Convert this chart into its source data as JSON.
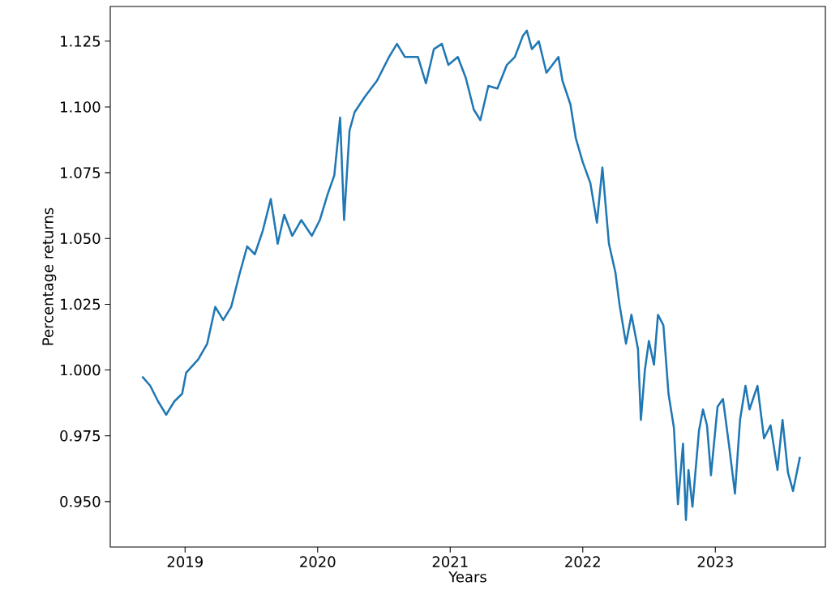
{
  "chart_data": {
    "type": "line",
    "xlabel": "Years",
    "ylabel": "Percentage returns",
    "x": [
      "2018-09-05",
      "2018-09-27",
      "2018-10-19",
      "2018-11-10",
      "2018-12-02",
      "2018-12-24",
      "2019-01-04",
      "2019-02-06",
      "2019-03-03",
      "2019-03-25",
      "2019-04-16",
      "2019-05-08",
      "2019-05-30",
      "2019-06-21",
      "2019-07-12",
      "2019-08-03",
      "2019-08-25",
      "2019-09-13",
      "2019-10-01",
      "2019-10-23",
      "2019-11-17",
      "2019-12-16",
      "2020-01-07",
      "2020-01-29",
      "2020-02-16",
      "2020-03-03",
      "2020-03-07",
      "2020-03-14",
      "2020-03-29",
      "2020-04-12",
      "2020-05-11",
      "2020-06-13",
      "2020-07-16",
      "2020-08-07",
      "2020-08-29",
      "2020-10-04",
      "2020-10-26",
      "2020-11-17",
      "2020-12-09",
      "2020-12-27",
      "2021-01-22",
      "2021-02-13",
      "2021-03-07",
      "2021-03-25",
      "2021-04-16",
      "2021-05-11",
      "2021-06-06",
      "2021-06-28",
      "2021-07-20",
      "2021-07-31",
      "2021-08-14",
      "2021-09-02",
      "2021-09-23",
      "2021-10-26",
      "2021-11-06",
      "2021-11-28",
      "2021-12-13",
      "2022-01-01",
      "2022-01-22",
      "2022-02-09",
      "2022-02-24",
      "2022-03-14",
      "2022-04-01",
      "2022-04-12",
      "2022-04-30",
      "2022-05-15",
      "2022-06-02",
      "2022-06-10",
      "2022-06-21",
      "2022-07-02",
      "2022-07-16",
      "2022-07-27",
      "2022-08-11",
      "2022-08-25",
      "2022-09-09",
      "2022-09-20",
      "2022-10-04",
      "2022-10-12",
      "2022-10-19",
      "2022-10-30",
      "2022-11-17",
      "2022-11-28",
      "2022-12-09",
      "2022-12-20",
      "2023-01-07",
      "2023-01-22",
      "2023-02-09",
      "2023-02-24",
      "2023-03-10",
      "2023-03-25",
      "2023-04-05",
      "2023-04-27",
      "2023-05-15",
      "2023-06-02",
      "2023-06-21",
      "2023-07-05",
      "2023-07-20",
      "2023-08-03",
      "2023-08-22"
    ],
    "series": [
      {
        "color": "#1f77b4",
        "values": [
          0.9975,
          0.994,
          0.988,
          0.983,
          0.988,
          0.991,
          0.999,
          1.004,
          1.01,
          1.024,
          1.019,
          1.024,
          1.036,
          1.047,
          1.044,
          1.053,
          1.065,
          1.048,
          1.059,
          1.051,
          1.057,
          1.051,
          1.057,
          1.067,
          1.074,
          1.096,
          1.082,
          1.057,
          1.091,
          1.098,
          1.104,
          1.11,
          1.119,
          1.124,
          1.119,
          1.119,
          1.109,
          1.122,
          1.124,
          1.116,
          1.119,
          1.111,
          1.099,
          1.095,
          1.108,
          1.107,
          1.116,
          1.119,
          1.127,
          1.129,
          1.122,
          1.125,
          1.113,
          1.119,
          1.11,
          1.101,
          1.088,
          1.079,
          1.071,
          1.056,
          1.077,
          1.048,
          1.037,
          1.025,
          1.01,
          1.021,
          1.008,
          0.981,
          1.0,
          1.011,
          1.002,
          1.021,
          1.017,
          0.991,
          0.978,
          0.949,
          0.972,
          0.943,
          0.962,
          0.948,
          0.977,
          0.985,
          0.979,
          0.96,
          0.986,
          0.989,
          0.97,
          0.953,
          0.981,
          0.994,
          0.985,
          0.994,
          0.974,
          0.979,
          0.962,
          0.981,
          0.961,
          0.954,
          0.967
        ]
      }
    ],
    "xlim": [
      "2018-06-09",
      "2023-10-31"
    ],
    "xticks": [
      {
        "value": "2019",
        "label": "2019"
      },
      {
        "value": "2020",
        "label": "2020"
      },
      {
        "value": "2021",
        "label": "2021"
      },
      {
        "value": "2022",
        "label": "2022"
      },
      {
        "value": "2023",
        "label": "2023"
      }
    ],
    "ylim": [
      0.9327,
      1.1382
    ],
    "yticks": [
      {
        "value": 0.95,
        "label": "0.950"
      },
      0.975,
      {
        "value": 1.0,
        "label": "1.000"
      },
      1.025,
      {
        "value": 1.05,
        "label": "1.050"
      },
      1.075,
      {
        "value": 1.1,
        "label": "1.100"
      },
      1.125
    ],
    "grid": false,
    "marker": "none",
    "line_style": "solid"
  }
}
